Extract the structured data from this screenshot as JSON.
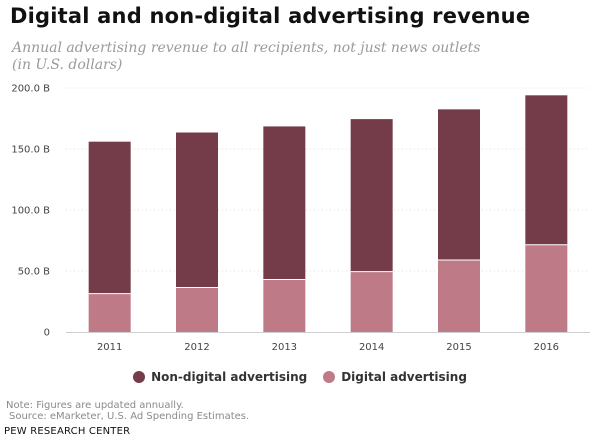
{
  "chart_data": {
    "type": "bar",
    "stacked": true,
    "title": "Digital and non-digital advertising revenue",
    "subtitle": "Annual advertising revenue to all recipients, not just news outlets (in U.S. dollars)",
    "categories": [
      "2011",
      "2012",
      "2013",
      "2014",
      "2015",
      "2016"
    ],
    "series": [
      {
        "name": "Digital advertising",
        "values": [
          31.5,
          36.5,
          43,
          49.5,
          59,
          71.5
        ],
        "color": "#be7b87"
      },
      {
        "name": "Non-digital advertising",
        "values": [
          124.5,
          127,
          125.5,
          125,
          123.5,
          122.5
        ],
        "color": "#733c48"
      }
    ],
    "yticks": [
      "0",
      "50.0 B",
      "100.0 B",
      "150.0 B",
      "200.0 B"
    ],
    "ylim": [
      0,
      200
    ],
    "xlabel": "",
    "ylabel": "",
    "legend": [
      "Non-digital advertising",
      "Digital advertising"
    ],
    "legend_position": "bottom-center",
    "grid": true
  },
  "footer": {
    "note": "Note: Figures are updated annually.",
    "source": "Source: eMarketer, U.S. Ad Spending Estimates.",
    "credit": "PEW RESEARCH CENTER"
  }
}
